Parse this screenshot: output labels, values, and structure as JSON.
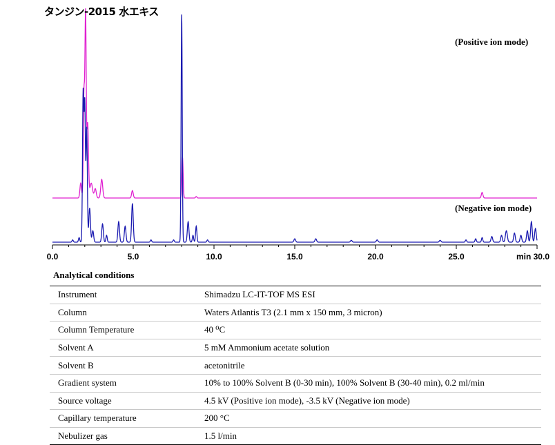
{
  "title": "タンジン-2015 水エキス",
  "chart_data": {
    "type": "line",
    "title": "タンジン-2015 水エキス",
    "xlabel": "min",
    "xlim": [
      0,
      30
    ],
    "x_ticks": [
      "0.0",
      "5.0",
      "10.0",
      "15.0",
      "20.0",
      "25.0",
      "min 30.0"
    ],
    "colors": {
      "positive": "#e020d0",
      "negative": "#1a1ab0"
    },
    "series": [
      {
        "name": "(Positive ion mode)",
        "color": "#e020d0",
        "peaks": [
          {
            "t": 1.75,
            "h": 0.08,
            "w": 0.05
          },
          {
            "t": 1.95,
            "h": 0.55,
            "w": 0.04
          },
          {
            "t": 2.05,
            "h": 0.98,
            "w": 0.04
          },
          {
            "t": 2.18,
            "h": 0.4,
            "w": 0.05
          },
          {
            "t": 2.4,
            "h": 0.08,
            "w": 0.08
          },
          {
            "t": 2.65,
            "h": 0.05,
            "w": 0.06
          },
          {
            "t": 3.05,
            "h": 0.1,
            "w": 0.06
          },
          {
            "t": 4.95,
            "h": 0.04,
            "w": 0.05
          },
          {
            "t": 8.05,
            "h": 0.22,
            "w": 0.04
          },
          {
            "t": 8.9,
            "h": 0.008,
            "w": 0.04
          },
          {
            "t": 26.6,
            "h": 0.03,
            "w": 0.05
          }
        ]
      },
      {
        "name": "(Negative ion mode)",
        "color": "#1a1ab0",
        "peaks": [
          {
            "t": 1.25,
            "h": 0.01,
            "w": 0.04
          },
          {
            "t": 1.65,
            "h": 0.02,
            "w": 0.04
          },
          {
            "t": 1.9,
            "h": 0.65,
            "w": 0.04
          },
          {
            "t": 2.0,
            "h": 0.6,
            "w": 0.04
          },
          {
            "t": 2.12,
            "h": 0.5,
            "w": 0.04
          },
          {
            "t": 2.3,
            "h": 0.15,
            "w": 0.05
          },
          {
            "t": 2.5,
            "h": 0.05,
            "w": 0.05
          },
          {
            "t": 3.1,
            "h": 0.08,
            "w": 0.05
          },
          {
            "t": 3.35,
            "h": 0.03,
            "w": 0.04
          },
          {
            "t": 4.1,
            "h": 0.09,
            "w": 0.05
          },
          {
            "t": 4.5,
            "h": 0.07,
            "w": 0.05
          },
          {
            "t": 4.95,
            "h": 0.17,
            "w": 0.05
          },
          {
            "t": 6.1,
            "h": 0.01,
            "w": 0.04
          },
          {
            "t": 7.5,
            "h": 0.01,
            "w": 0.04
          },
          {
            "t": 8.0,
            "h": 1.0,
            "w": 0.035
          },
          {
            "t": 8.4,
            "h": 0.09,
            "w": 0.05
          },
          {
            "t": 8.7,
            "h": 0.03,
            "w": 0.04
          },
          {
            "t": 8.9,
            "h": 0.07,
            "w": 0.04
          },
          {
            "t": 9.6,
            "h": 0.01,
            "w": 0.04
          },
          {
            "t": 15.0,
            "h": 0.015,
            "w": 0.05
          },
          {
            "t": 16.3,
            "h": 0.015,
            "w": 0.05
          },
          {
            "t": 18.5,
            "h": 0.008,
            "w": 0.05
          },
          {
            "t": 20.1,
            "h": 0.01,
            "w": 0.05
          },
          {
            "t": 24.0,
            "h": 0.008,
            "w": 0.05
          },
          {
            "t": 25.6,
            "h": 0.01,
            "w": 0.04
          },
          {
            "t": 26.2,
            "h": 0.015,
            "w": 0.04
          },
          {
            "t": 26.6,
            "h": 0.02,
            "w": 0.04
          },
          {
            "t": 27.2,
            "h": 0.025,
            "w": 0.05
          },
          {
            "t": 27.8,
            "h": 0.03,
            "w": 0.05
          },
          {
            "t": 28.1,
            "h": 0.05,
            "w": 0.06
          },
          {
            "t": 28.6,
            "h": 0.04,
            "w": 0.05
          },
          {
            "t": 29.0,
            "h": 0.03,
            "w": 0.05
          },
          {
            "t": 29.4,
            "h": 0.05,
            "w": 0.05
          },
          {
            "t": 29.65,
            "h": 0.09,
            "w": 0.05
          },
          {
            "t": 29.9,
            "h": 0.06,
            "w": 0.05
          }
        ]
      }
    ]
  },
  "conditions": {
    "title": "Analytical conditions",
    "rows": [
      {
        "param": "Instrument",
        "value": "Shimadzu LC-IT-TOF MS ESI"
      },
      {
        "param": "Column",
        "value": "Waters Atlantis T3 (2.1 mm x 150 mm, 3 micron)"
      },
      {
        "param": "Column Temperature",
        "value": "40 ⁰C"
      },
      {
        "param": "Solvent A",
        "value": "5 mM Ammonium acetate solution"
      },
      {
        "param": "Solvent B",
        "value": "acetonitrile"
      },
      {
        "param": "Gradient system",
        "value": "10% to 100% Solvent B (0-30 min), 100% Solvent B (30-40 min), 0.2 ml/min"
      },
      {
        "param": "Source voltage",
        "value": "4.5 kV (Positive ion mode), -3.5 kV (Negative ion mode)"
      },
      {
        "param": "Capillary temperature",
        "value": "200 °C"
      },
      {
        "param": "Nebulizer gas",
        "value": "1.5 l/min"
      }
    ]
  }
}
